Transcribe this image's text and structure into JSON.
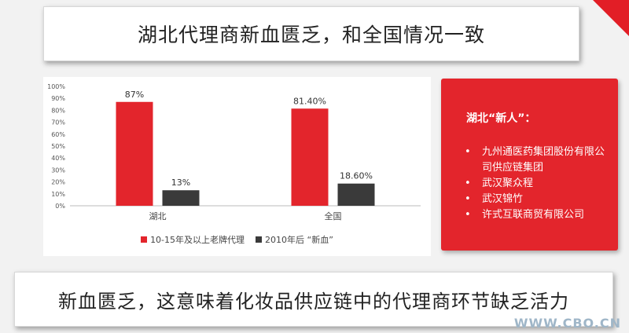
{
  "slide": {
    "title": "湖北代理商新血匮乏，和全国情况一致",
    "bottom_text": "新血匮乏，这意味着化妆品供应链中的代理商环节缺乏活力",
    "watermark": "WWW.CBO.CN",
    "accent_color": "#e21e26"
  },
  "card": {
    "heading": "湖北“新人”：",
    "bullet": "•",
    "items": [
      "九州通医药集团股份有限公司供应链集团",
      "武汉聚众程",
      "武汉锦竹",
      "许式互联商贸有限公司"
    ]
  },
  "chart_data": {
    "type": "bar",
    "title": "",
    "xlabel": "",
    "ylabel": "",
    "categories": [
      "湖北",
      "全国"
    ],
    "series": [
      {
        "name": "10-15年及以上老牌代理",
        "values": [
          87,
          81.4
        ],
        "labels": [
          "87%",
          "81.40%"
        ],
        "color": "#e3252c"
      },
      {
        "name": "2010年后 “新血”",
        "values": [
          13,
          18.6
        ],
        "labels": [
          "13%",
          "18.60%"
        ],
        "color": "#3a3a3a"
      }
    ],
    "ylim": [
      0,
      100
    ],
    "yticks": [
      "0%",
      "10%",
      "20%",
      "30%",
      "40%",
      "50%",
      "60%",
      "70%",
      "80%",
      "90%",
      "100%"
    ],
    "grid": false,
    "legend_position": "bottom"
  }
}
